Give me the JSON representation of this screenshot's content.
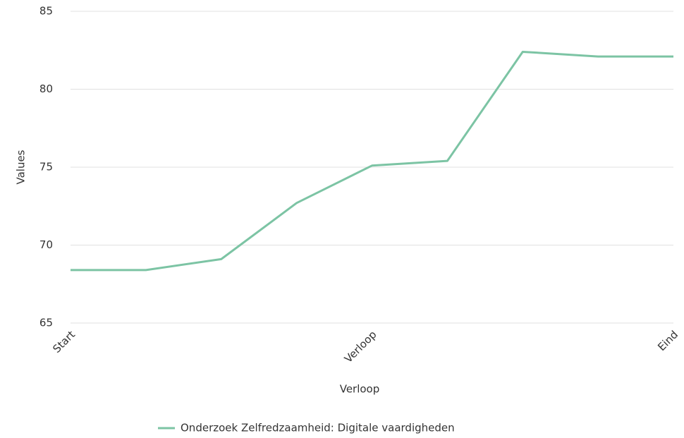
{
  "chart_data": {
    "type": "line",
    "categories": [
      "Start",
      null,
      null,
      null,
      "Verloop",
      null,
      null,
      null,
      "Eind"
    ],
    "series": [
      {
        "name": "Onderzoek Zelfredzaamheid: Digitale vaardigheden",
        "color": "#7cc4a4",
        "values": [
          68.4,
          68.4,
          69.1,
          72.7,
          75.1,
          75.4,
          82.4,
          82.1,
          82.1
        ]
      }
    ],
    "xlabel": "Verloop",
    "ylabel": "Values",
    "ylim": [
      65,
      85
    ],
    "yticks": [
      65,
      70,
      75,
      80,
      85
    ],
    "grid": true,
    "legend": "bottom"
  }
}
